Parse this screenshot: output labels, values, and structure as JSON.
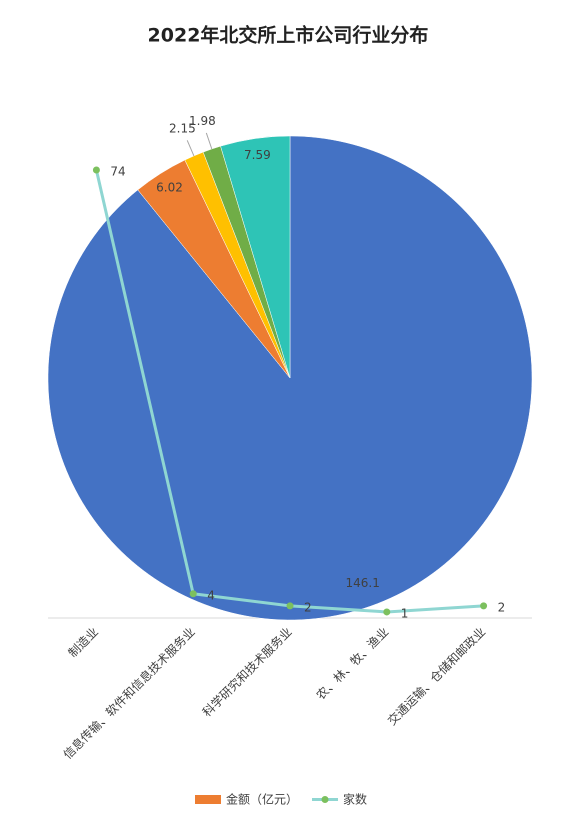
{
  "chart_data": [
    {
      "type": "pie",
      "title": "2022年北交所上市公司行业分布",
      "series": [
        {
          "name": "金额（亿元）",
          "color": "#ed7d31",
          "values": [
            146.1,
            6.02,
            2.15,
            1.98,
            7.59
          ],
          "colors": [
            "#4472c4",
            "#ed7d31",
            "#ffc000",
            "#70ad47",
            "#2ec4b6"
          ]
        }
      ]
    },
    {
      "type": "line",
      "categories": [
        "制造业",
        "信息传输、软件和信息技术服务业",
        "科学研究和技术服务业",
        "农、林、牧、渔业",
        "交通运输、仓储和邮政业"
      ],
      "series": [
        {
          "name": "家数",
          "color": "#8fd6d2",
          "marker_color": "#7cc05e",
          "values": [
            74,
            4,
            2,
            1,
            2
          ]
        }
      ]
    }
  ]
}
